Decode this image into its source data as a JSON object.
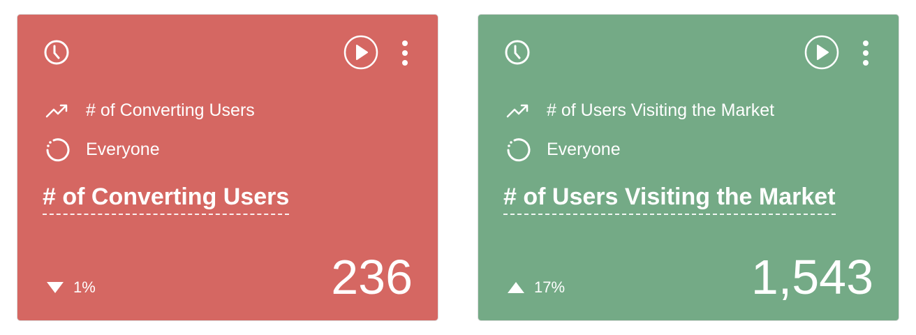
{
  "cards": [
    {
      "color": "#D56762",
      "metric": "# of Converting Users",
      "segment": "Everyone",
      "title": "# of Converting Users",
      "change": "1%",
      "direction": "down",
      "value": "236",
      "icons": [
        "clock-icon",
        "play-icon",
        "more-vertical-icon",
        "trend-icon",
        "segment-icon",
        "triangle-down-icon"
      ]
    },
    {
      "color": "#74AA86",
      "metric": "# of Users Visiting the Market",
      "segment": "Everyone",
      "title": "# of Users Visiting the Market",
      "change": "17%",
      "direction": "up",
      "value": "1,543",
      "icons": [
        "clock-icon",
        "play-icon",
        "more-vertical-icon",
        "trend-icon",
        "segment-icon",
        "triangle-up-icon"
      ]
    }
  ]
}
